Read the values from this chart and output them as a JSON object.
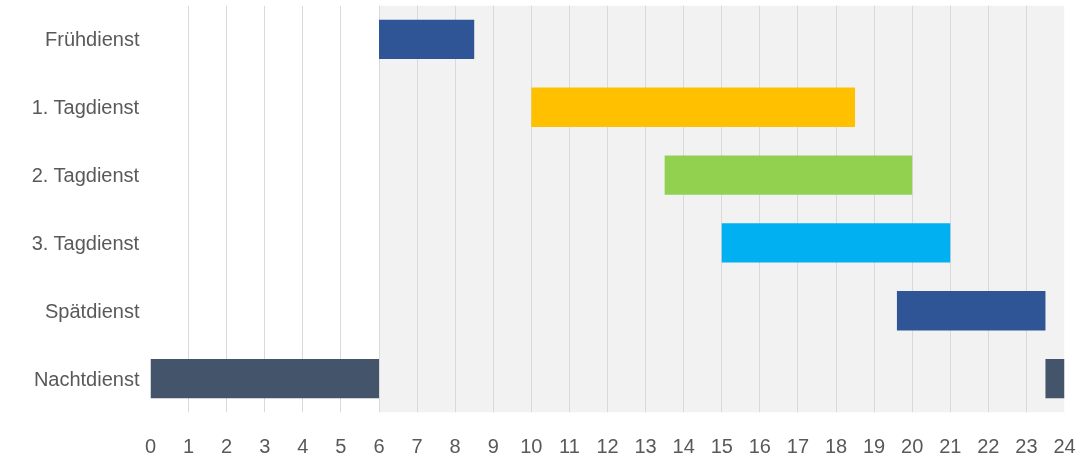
{
  "chart_data": {
    "type": "bar",
    "orientation": "horizontal",
    "categories": [
      "Frühdienst",
      "1. Tagdienst",
      "2. Tagdienst",
      "3. Tagdienst",
      "Spätdienst",
      "Nachtdienst"
    ],
    "series": [
      {
        "colors": [
          "#2f5597",
          "#ffc000",
          "#92d050",
          "#00b0f0",
          "#2f5597",
          "#44546a"
        ],
        "base": [
          6,
          10,
          13.5,
          15,
          19.6,
          0
        ],
        "values": [
          2.5,
          8.5,
          6.5,
          6,
          3.9,
          6
        ]
      },
      {
        "color": "#44546a",
        "base": [
          null,
          null,
          null,
          null,
          null,
          23.5
        ],
        "values": [
          null,
          null,
          null,
          null,
          null,
          0.5
        ]
      }
    ],
    "xlim": [
      0,
      24
    ],
    "xticks": [
      0,
      1,
      2,
      3,
      4,
      5,
      6,
      7,
      8,
      9,
      10,
      11,
      12,
      13,
      14,
      15,
      16,
      17,
      18,
      19,
      20,
      21,
      22,
      23,
      24
    ],
    "bands": [
      {
        "axis": "x",
        "from": 6,
        "to": 24,
        "color": "#f2f2f2"
      }
    ],
    "grid": "x"
  }
}
